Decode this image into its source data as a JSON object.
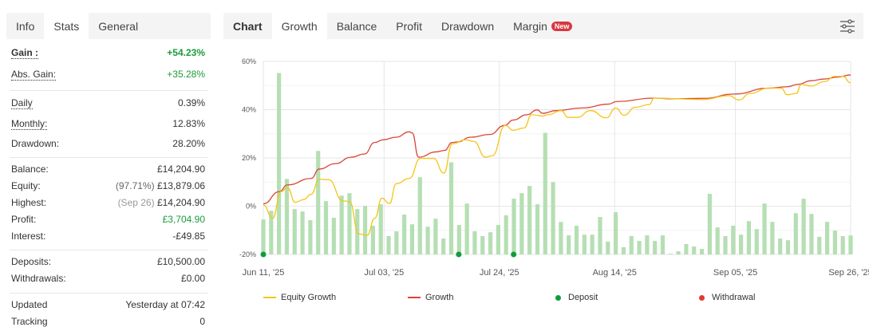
{
  "left_tabs": [
    "Info",
    "Stats",
    "General"
  ],
  "stats": {
    "gain": {
      "label": "Gain :",
      "value": "+54.23%"
    },
    "abs_gain": {
      "label": "Abs. Gain:",
      "value": "+35.28%"
    },
    "daily": {
      "label": "Daily",
      "value": "0.39%"
    },
    "monthly": {
      "label": "Monthly:",
      "value": "12.83%"
    },
    "drawdown": {
      "label": "Drawdown:",
      "value": "28.20%"
    },
    "balance": {
      "label": "Balance:",
      "value": "£14,204.90"
    },
    "equity": {
      "label": "Equity:",
      "note": "(97.71%)",
      "value": "£13,879.06"
    },
    "highest": {
      "label": "Highest:",
      "note": "(Sep 26)",
      "value": "£14,204.90"
    },
    "profit": {
      "label": "Profit:",
      "value": "£3,704.90"
    },
    "interest": {
      "label": "Interest:",
      "value": "-£49.85"
    },
    "deposits": {
      "label": "Deposits:",
      "value": "£10,500.00"
    },
    "withdrawals": {
      "label": "Withdrawals:",
      "value": "£0.00"
    },
    "updated": {
      "label": "Updated",
      "value": "Yesterday at 07:42"
    },
    "tracking": {
      "label": "Tracking",
      "value": "0"
    }
  },
  "chart_tabs": {
    "head": "Chart",
    "items": [
      "Growth",
      "Balance",
      "Profit",
      "Drawdown",
      "Margin"
    ],
    "new_badge": "New"
  },
  "colors": {
    "equity": "#f5c518",
    "growth": "#d9463a",
    "deposit": "#0f9d3a",
    "withdrawal": "#e03a2f",
    "bar": "#b5dfb3"
  },
  "chart_data": {
    "type": "line",
    "ylim": [
      -20,
      60
    ],
    "yticks": [
      "60%",
      "40%",
      "20%",
      "0%",
      "-20%"
    ],
    "ytick_values": [
      60,
      40,
      20,
      0,
      -20
    ],
    "xlim_days": [
      0,
      107
    ],
    "xticks": [
      {
        "label": "Jun 11, '25",
        "day": 0
      },
      {
        "label": "Jul 03, '25",
        "day": 22
      },
      {
        "label": "Jul 24, '25",
        "day": 43
      },
      {
        "label": "Aug 14, '25",
        "day": 64
      },
      {
        "label": "Sep 05, '25",
        "day": 86
      },
      {
        "label": "Sep 26, '25",
        "day": 107
      }
    ],
    "legend": [
      "Equity Growth",
      "Growth",
      "Deposit",
      "Withdrawal"
    ],
    "series": [
      {
        "name": "Growth",
        "points": [
          [
            0,
            1
          ],
          [
            2.9,
            6
          ],
          [
            4.4,
            8.8
          ],
          [
            8.7,
            11.5
          ],
          [
            10.2,
            15.4
          ],
          [
            13.1,
            17.6
          ],
          [
            16,
            20.3
          ],
          [
            18.4,
            21.6
          ],
          [
            20.3,
            26.4
          ],
          [
            21.8,
            27.5
          ],
          [
            24.2,
            28.6
          ],
          [
            26.6,
            30.8
          ],
          [
            27.1,
            30.4
          ],
          [
            28.3,
            20.3
          ],
          [
            31.5,
            22.5
          ],
          [
            33,
            23.1
          ],
          [
            34.4,
            26.4
          ],
          [
            35.3,
            26.6
          ],
          [
            37.8,
            28.6
          ],
          [
            41.2,
            29.7
          ],
          [
            44,
            33.5
          ],
          [
            45.5,
            35.7
          ],
          [
            48,
            37.9
          ],
          [
            49.9,
            39.9
          ],
          [
            50.9,
            38.5
          ],
          [
            53.3,
            39.6
          ],
          [
            58.1,
            40.7
          ],
          [
            62.9,
            42.3
          ],
          [
            64.4,
            43.4
          ],
          [
            71.2,
            44.8
          ],
          [
            74.6,
            44.5
          ],
          [
            80.4,
            44.7
          ],
          [
            85.8,
            46.5
          ],
          [
            92,
            48.9
          ],
          [
            95.5,
            49.5
          ],
          [
            97.4,
            50.5
          ],
          [
            99.8,
            52
          ],
          [
            102.2,
            52.7
          ],
          [
            104.6,
            53.5
          ],
          [
            107,
            54.4
          ]
        ]
      },
      {
        "name": "Equity Growth",
        "points": [
          [
            0,
            0.5
          ],
          [
            1.7,
            -5
          ],
          [
            3.2,
            6
          ],
          [
            4.4,
            7.7
          ],
          [
            5.8,
            1.6
          ],
          [
            7.3,
            2.7
          ],
          [
            8.7,
            4.9
          ],
          [
            10.2,
            11.2
          ],
          [
            11.9,
            11
          ],
          [
            14.5,
            2.2
          ],
          [
            15.7,
            1.9
          ],
          [
            17.4,
            -11.5
          ],
          [
            18.9,
            -12.1
          ],
          [
            20.3,
            -5
          ],
          [
            21.6,
            3.3
          ],
          [
            23,
            1.1
          ],
          [
            24.2,
            9.3
          ],
          [
            26.6,
            11.5
          ],
          [
            28.6,
            19.8
          ],
          [
            31,
            19.8
          ],
          [
            32.9,
            13.7
          ],
          [
            34.4,
            25.8
          ],
          [
            36.8,
            27.5
          ],
          [
            38.3,
            26.9
          ],
          [
            40.5,
            20.3
          ],
          [
            41.7,
            20.9
          ],
          [
            44.1,
            33.5
          ],
          [
            45.5,
            31.5
          ],
          [
            47.5,
            32.4
          ],
          [
            48.9,
            37.9
          ],
          [
            50.9,
            37.4
          ],
          [
            51.8,
            37.9
          ],
          [
            54.3,
            39.6
          ],
          [
            55.5,
            36.8
          ],
          [
            57.2,
            36.8
          ],
          [
            59.6,
            39.6
          ],
          [
            62.5,
            36.6
          ],
          [
            64.2,
            40.7
          ],
          [
            65.7,
            37.7
          ],
          [
            67.8,
            41
          ],
          [
            70.3,
            42.1
          ],
          [
            71.2,
            44.8
          ],
          [
            80,
            44.2
          ],
          [
            84.8,
            45.8
          ],
          [
            86.7,
            44
          ],
          [
            88.6,
            46.7
          ],
          [
            92,
            48.9
          ],
          [
            94.4,
            48.9
          ],
          [
            95.4,
            46.2
          ],
          [
            97.1,
            46.7
          ],
          [
            98,
            50.5
          ],
          [
            99.8,
            49.8
          ],
          [
            102.2,
            51.6
          ],
          [
            104.1,
            53.8
          ],
          [
            105.6,
            53.8
          ],
          [
            107,
            51.1
          ]
        ]
      }
    ],
    "bars": [
      -5.5,
      -1.9,
      55.2,
      11.3,
      -1.2,
      -2.2,
      -5.8,
      22.9,
      2.1,
      -4.8,
      4.4,
      5.4,
      -1.2,
      0.1,
      -8.1,
      0.8,
      -12.4,
      -10.4,
      -3.5,
      -7.5,
      12.0,
      -8.5,
      -5.2,
      -13.4,
      18.2,
      -7.8,
      1.1,
      -10.4,
      -12.4,
      -10.8,
      -7.8,
      -3.8,
      3.1,
      5.4,
      8.4,
      0.8,
      30.4,
      10.0,
      -6.5,
      -12.1,
      -8.1,
      -11.8,
      -11.8,
      -4.5,
      -14.7,
      -2.5,
      -17.0,
      -12.4,
      -14.4,
      -12.1,
      -14.4,
      -12.1,
      -19.7,
      -18.7,
      -15.7,
      -16.7,
      -17.7,
      5.1,
      -8.8,
      -12.4,
      -8.1,
      -11.8,
      -6.2,
      -9.5,
      1.1,
      -6.5,
      -13.4,
      -14.1,
      -2.9,
      3.1,
      -3.2,
      -12.7,
      -6.5,
      -10.1,
      -12.4,
      -12.1
    ],
    "deposits_days": [
      0,
      35.6,
      45.6
    ]
  }
}
